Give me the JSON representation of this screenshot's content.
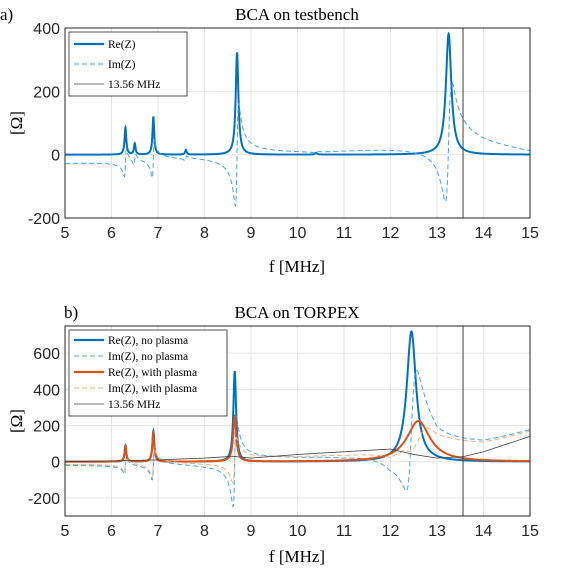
{
  "figure": {
    "panel_a_label": "a)",
    "panel_b_label": "b)"
  },
  "chart_data": [
    {
      "type": "line",
      "title": "BCA on testbench",
      "xlabel": "f [MHz]",
      "ylabel": "[Ω]",
      "xlim": [
        5,
        15
      ],
      "ylim": [
        -200,
        400
      ],
      "xticks": [
        "5",
        "6",
        "7",
        "8",
        "9",
        "10",
        "11",
        "12",
        "13",
        "14",
        "15"
      ],
      "yticks": [
        "-200",
        "0",
        "200",
        "400"
      ],
      "grid": true,
      "legend_position": "top-left",
      "series": [
        {
          "name": "Re(Z)",
          "color": "#0072BD",
          "style": "solid",
          "resonances": [
            {
              "f0": 6.3,
              "peak": 85,
              "width": 0.022
            },
            {
              "f0": 6.5,
              "peak": 35,
              "width": 0.02
            },
            {
              "f0": 6.9,
              "peak": 120,
              "width": 0.022
            },
            {
              "f0": 7.6,
              "peak": 15,
              "width": 0.02
            },
            {
              "f0": 8.7,
              "peak": 323,
              "width": 0.035
            },
            {
              "f0": 10.4,
              "peak": 5,
              "width": 0.03
            },
            {
              "f0": 13.25,
              "peak": 382,
              "width": 0.07
            }
          ]
        },
        {
          "name": "Im(Z)",
          "color": "#4DA3E0",
          "style": "dashed",
          "baseline": [
            [
              5,
              -18
            ],
            [
              8,
              0
            ],
            [
              10.5,
              10
            ],
            [
              12,
              30
            ],
            [
              13,
              45
            ],
            [
              14,
              15
            ],
            [
              15,
              -5
            ]
          ],
          "derived_from": "Re(Z)"
        },
        {
          "name": "13.56 MHz",
          "color": "#404040",
          "style": "vline",
          "x": 13.56
        }
      ]
    },
    {
      "type": "line",
      "title": "BCA on TORPEX",
      "xlabel": "f [MHz]",
      "ylabel": "[Ω]",
      "xlim": [
        5,
        15
      ],
      "ylim": [
        -300,
        750
      ],
      "xticks": [
        "5",
        "6",
        "7",
        "8",
        "9",
        "10",
        "11",
        "12",
        "13",
        "14",
        "15"
      ],
      "yticks": [
        "-200",
        "0",
        "200",
        "400",
        "600"
      ],
      "grid": true,
      "legend_position": "top-left",
      "series": [
        {
          "name": "Re(Z), no plasma",
          "color": "#0072BD",
          "style": "solid",
          "resonances": [
            {
              "f0": 6.3,
              "peak": 90,
              "width": 0.022
            },
            {
              "f0": 6.9,
              "peak": 170,
              "width": 0.025
            },
            {
              "f0": 8.65,
              "peak": 500,
              "width": 0.035
            },
            {
              "f0": 12.45,
              "peak": 720,
              "width": 0.12
            }
          ]
        },
        {
          "name": "Im(Z), no plasma",
          "color": "#4DA3E0",
          "style": "dashed",
          "baseline": [
            [
              5,
              0
            ],
            [
              8,
              10
            ],
            [
              10,
              45
            ],
            [
              11,
              70
            ],
            [
              12,
              120
            ],
            [
              12.3,
              200
            ],
            [
              13,
              40
            ],
            [
              14,
              60
            ],
            [
              15,
              140
            ]
          ],
          "derived_from": "Re(Z), no plasma"
        },
        {
          "name": "Re(Z), with plasma",
          "color": "#D95319",
          "style": "solid",
          "resonances": [
            {
              "f0": 6.3,
              "peak": 85,
              "width": 0.022
            },
            {
              "f0": 6.9,
              "peak": 160,
              "width": 0.025
            },
            {
              "f0": 8.65,
              "peak": 250,
              "width": 0.04
            },
            {
              "f0": 12.6,
              "peak": 225,
              "width": 0.3
            }
          ]
        },
        {
          "name": "Im(Z), with plasma",
          "color": "#EDB07E",
          "style": "dashed",
          "baseline": [
            [
              5,
              0
            ],
            [
              8,
              10
            ],
            [
              10,
              45
            ],
            [
              11,
              70
            ],
            [
              12,
              110
            ],
            [
              12.3,
              175
            ],
            [
              13,
              40
            ],
            [
              14,
              60
            ],
            [
              15,
              140
            ]
          ],
          "derived_from": "Re(Z), with plasma"
        },
        {
          "name": "13.56 MHz",
          "color": "#404040",
          "style": "solid-thin",
          "curve": [
            [
              5,
              0
            ],
            [
              6,
              5
            ],
            [
              7,
              10
            ],
            [
              8,
              20
            ],
            [
              8.6,
              30
            ],
            [
              9,
              20
            ],
            [
              10,
              40
            ],
            [
              11,
              55
            ],
            [
              12,
              70
            ],
            [
              12.5,
              40
            ],
            [
              13,
              20
            ],
            [
              13.56,
              28
            ],
            [
              14,
              55
            ],
            [
              15,
              140
            ]
          ],
          "vline_x": 13.56
        }
      ]
    }
  ]
}
